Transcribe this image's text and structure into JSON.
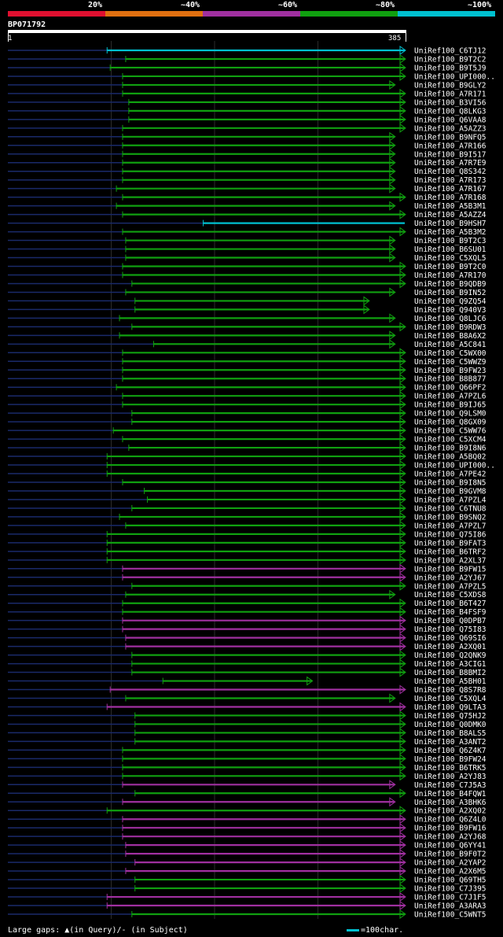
{
  "legend": [
    {
      "label": "20%",
      "color": "#e01030"
    },
    {
      "label": "~40%",
      "color": "#e07010"
    },
    {
      "label": "~60%",
      "color": "#a030a0"
    },
    {
      "label": "~80%",
      "color": "#10a010"
    },
    {
      "label": "~100%",
      "color": "#00c0d0"
    }
  ],
  "query": {
    "id": "BP071792",
    "start": "1",
    "end": "385",
    "length": 385
  },
  "footer": {
    "gaps_text": "Large gaps: ▲(in Query)/- (in Subject)",
    "scale_text": "=100char."
  },
  "hit_colors": {
    "c": "#00c0d0",
    "g": "#10a010",
    "p": "#a030a0"
  },
  "hits": [
    {
      "name": "UniRef100_C6TJ12",
      "start": 97,
      "color": "c",
      "arrow": true
    },
    {
      "name": "UniRef100_B9T2C2",
      "start": 115,
      "color": "g",
      "arrow": true
    },
    {
      "name": "UniRef100_B9T5J9",
      "start": 100,
      "color": "g",
      "arrow": true
    },
    {
      "name": "UniRef100_UPI000..",
      "start": 112,
      "color": "g",
      "arrow": true
    },
    {
      "name": "UniRef100_B9GLY2",
      "start": 112,
      "color": "g",
      "arrow": true,
      "end": 375
    },
    {
      "name": "UniRef100_A7R171",
      "start": 112,
      "color": "g",
      "arrow": true
    },
    {
      "name": "UniRef100_B3VI56",
      "start": 118,
      "color": "g",
      "arrow": true
    },
    {
      "name": "UniRef100_Q8LKG3",
      "start": 118,
      "color": "g",
      "arrow": true
    },
    {
      "name": "UniRef100_Q6VAA8",
      "start": 118,
      "color": "g",
      "arrow": true
    },
    {
      "name": "UniRef100_A5AZZ3",
      "start": 112,
      "color": "g",
      "arrow": true
    },
    {
      "name": "UniRef100_B9NFQ5",
      "start": 112,
      "color": "g",
      "arrow": true,
      "end": 375
    },
    {
      "name": "UniRef100_A7R166",
      "start": 112,
      "color": "g",
      "arrow": true,
      "end": 375
    },
    {
      "name": "UniRef100_B9I517",
      "start": 112,
      "color": "g",
      "arrow": true,
      "end": 375
    },
    {
      "name": "UniRef100_A7R7E9",
      "start": 112,
      "color": "g",
      "arrow": true,
      "end": 375
    },
    {
      "name": "UniRef100_Q8S342",
      "start": 112,
      "color": "g",
      "arrow": true,
      "end": 375
    },
    {
      "name": "UniRef100_A7R173",
      "start": 112,
      "color": "g",
      "arrow": true,
      "end": 375
    },
    {
      "name": "UniRef100_A7R167",
      "start": 106,
      "color": "g",
      "arrow": true,
      "end": 375
    },
    {
      "name": "UniRef100_A7R168",
      "start": 112,
      "color": "g",
      "arrow": true
    },
    {
      "name": "UniRef100_A5B3M1",
      "start": 106,
      "color": "g",
      "arrow": true,
      "end": 375
    },
    {
      "name": "UniRef100_A5AZZ4",
      "start": 112,
      "color": "g",
      "arrow": true
    },
    {
      "name": "UniRef100_B9HSH7",
      "start": 190,
      "color": "c",
      "arrow": false
    },
    {
      "name": "UniRef100_A5B3M2",
      "start": 112,
      "color": "g",
      "arrow": true
    },
    {
      "name": "UniRef100_B9T2C3",
      "start": 115,
      "color": "g",
      "arrow": true,
      "end": 375
    },
    {
      "name": "UniRef100_B6SU01",
      "start": 115,
      "color": "g",
      "arrow": true,
      "end": 375
    },
    {
      "name": "UniRef100_C5XQL5",
      "start": 115,
      "color": "g",
      "arrow": true,
      "end": 375
    },
    {
      "name": "UniRef100_B9T2C0",
      "start": 112,
      "color": "g",
      "arrow": true
    },
    {
      "name": "UniRef100_A7R170",
      "start": 112,
      "color": "g",
      "arrow": true
    },
    {
      "name": "UniRef100_B9QDB9",
      "start": 121,
      "color": "g",
      "arrow": true
    },
    {
      "name": "UniRef100_B9IN52",
      "start": 115,
      "color": "g",
      "arrow": true,
      "end": 375
    },
    {
      "name": "UniRef100_Q9ZQ54",
      "start": 124,
      "color": "g",
      "arrow": true,
      "end": 350
    },
    {
      "name": "UniRef100_Q940V3",
      "start": 124,
      "color": "g",
      "arrow": true,
      "end": 350
    },
    {
      "name": "UniRef100_Q8LJC6",
      "start": 109,
      "color": "g",
      "arrow": true,
      "end": 375
    },
    {
      "name": "UniRef100_B9RDW3",
      "start": 121,
      "color": "g",
      "arrow": true
    },
    {
      "name": "UniRef100_B8A6X2",
      "start": 109,
      "color": "g",
      "arrow": true,
      "end": 375
    },
    {
      "name": "UniRef100_A5C841",
      "start": 142,
      "color": "g",
      "arrow": true,
      "end": 375
    },
    {
      "name": "UniRef100_C5WX00",
      "start": 112,
      "color": "g",
      "arrow": true
    },
    {
      "name": "UniRef100_C5WWZ9",
      "start": 112,
      "color": "g",
      "arrow": true
    },
    {
      "name": "UniRef100_B9FW23",
      "start": 112,
      "color": "g",
      "arrow": true
    },
    {
      "name": "UniRef100_B8B877",
      "start": 112,
      "color": "g",
      "arrow": true
    },
    {
      "name": "UniRef100_Q66PF2",
      "start": 106,
      "color": "g",
      "arrow": true
    },
    {
      "name": "UniRef100_A7PZL6",
      "start": 112,
      "color": "g",
      "arrow": true
    },
    {
      "name": "UniRef100_B9IJ65",
      "start": 112,
      "color": "g",
      "arrow": true
    },
    {
      "name": "UniRef100_Q9LSM0",
      "start": 121,
      "color": "g",
      "arrow": true
    },
    {
      "name": "UniRef100_Q8GX09",
      "start": 121,
      "color": "g",
      "arrow": true
    },
    {
      "name": "UniRef100_C5WW76",
      "start": 103,
      "color": "g",
      "arrow": true
    },
    {
      "name": "UniRef100_C5XCM4",
      "start": 112,
      "color": "g",
      "arrow": true
    },
    {
      "name": "UniRef100_B9I8N6",
      "start": 118,
      "color": "g",
      "arrow": true
    },
    {
      "name": "UniRef100_A5BQ02",
      "start": 97,
      "color": "g",
      "arrow": true
    },
    {
      "name": "UniRef100_UPI000..",
      "start": 97,
      "color": "g",
      "arrow": true
    },
    {
      "name": "UniRef100_A7PE42",
      "start": 97,
      "color": "g",
      "arrow": true
    },
    {
      "name": "UniRef100_B9I8N5",
      "start": 112,
      "color": "g",
      "arrow": true
    },
    {
      "name": "UniRef100_B9GVM8",
      "start": 133,
      "color": "g",
      "arrow": true
    },
    {
      "name": "UniRef100_A7PZL4",
      "start": 136,
      "color": "g",
      "arrow": true
    },
    {
      "name": "UniRef100_C6TNU8",
      "start": 121,
      "color": "g",
      "arrow": true
    },
    {
      "name": "UniRef100_B9SNQ2",
      "start": 109,
      "color": "g",
      "arrow": true
    },
    {
      "name": "UniRef100_A7PZL7",
      "start": 115,
      "color": "g",
      "arrow": true
    },
    {
      "name": "UniRef100_Q75I86",
      "start": 97,
      "color": "g",
      "arrow": true
    },
    {
      "name": "UniRef100_B9FAT3",
      "start": 97,
      "color": "g",
      "arrow": true
    },
    {
      "name": "UniRef100_B6TRF2",
      "start": 97,
      "color": "g",
      "arrow": true
    },
    {
      "name": "UniRef100_A2XL37",
      "start": 97,
      "color": "g",
      "arrow": true
    },
    {
      "name": "UniRef100_B9FW15",
      "start": 112,
      "color": "p",
      "arrow": true
    },
    {
      "name": "UniRef100_A2YJ67",
      "start": 112,
      "color": "p",
      "arrow": true
    },
    {
      "name": "UniRef100_A7PZL5",
      "start": 121,
      "color": "g",
      "arrow": true
    },
    {
      "name": "UniRef100_C5XDS8",
      "start": 115,
      "color": "g",
      "arrow": true,
      "end": 375
    },
    {
      "name": "UniRef100_B6T427",
      "start": 112,
      "color": "g",
      "arrow": true
    },
    {
      "name": "UniRef100_B4FSF9",
      "start": 112,
      "color": "g",
      "arrow": true
    },
    {
      "name": "UniRef100_Q0DPB7",
      "start": 112,
      "color": "p",
      "arrow": true
    },
    {
      "name": "UniRef100_Q75I83",
      "start": 112,
      "color": "p",
      "arrow": true
    },
    {
      "name": "UniRef100_Q69SI6",
      "start": 115,
      "color": "p",
      "arrow": true
    },
    {
      "name": "UniRef100_A2XQ01",
      "start": 115,
      "color": "p",
      "arrow": true
    },
    {
      "name": "UniRef100_Q2QNK9",
      "start": 121,
      "color": "g",
      "arrow": true
    },
    {
      "name": "UniRef100_A3CIG1",
      "start": 121,
      "color": "g",
      "arrow": true
    },
    {
      "name": "UniRef100_B8BMI2",
      "start": 121,
      "color": "g",
      "arrow": true
    },
    {
      "name": "UniRef100_A5BH01",
      "start": 151,
      "color": "g",
      "arrow": true,
      "end": 295
    },
    {
      "name": "UniRef100_Q8S7R8",
      "start": 100,
      "color": "p",
      "arrow": true
    },
    {
      "name": "UniRef100_C5XQL4",
      "start": 115,
      "color": "g",
      "arrow": true,
      "end": 375
    },
    {
      "name": "UniRef100_Q9LTA3",
      "start": 97,
      "color": "p",
      "arrow": true
    },
    {
      "name": "UniRef100_Q75HJ2",
      "start": 124,
      "color": "g",
      "arrow": true
    },
    {
      "name": "UniRef100_Q0DMK0",
      "start": 124,
      "color": "g",
      "arrow": true
    },
    {
      "name": "UniRef100_B8ALS5",
      "start": 124,
      "color": "g",
      "arrow": true
    },
    {
      "name": "UniRef100_A3ANT2",
      "start": 124,
      "color": "g",
      "arrow": true
    },
    {
      "name": "UniRef100_Q6Z4K7",
      "start": 112,
      "color": "g",
      "arrow": true
    },
    {
      "name": "UniRef100_B9FW24",
      "start": 112,
      "color": "g",
      "arrow": true
    },
    {
      "name": "UniRef100_B6TRK5",
      "start": 112,
      "color": "g",
      "arrow": true
    },
    {
      "name": "UniRef100_A2YJ83",
      "start": 112,
      "color": "g",
      "arrow": true
    },
    {
      "name": "UniRef100_C7J5A3",
      "start": 112,
      "color": "p",
      "arrow": true,
      "end": 375
    },
    {
      "name": "UniRef100_B4FQW1",
      "start": 124,
      "color": "g",
      "arrow": true
    },
    {
      "name": "UniRef100_A3BHK6",
      "start": 112,
      "color": "p",
      "arrow": true,
      "end": 375
    },
    {
      "name": "UniRef100_A2XQ02",
      "start": 97,
      "color": "g",
      "arrow": true
    },
    {
      "name": "UniRef100_Q6Z4L0",
      "start": 112,
      "color": "p",
      "arrow": true
    },
    {
      "name": "UniRef100_B9FW16",
      "start": 112,
      "color": "p",
      "arrow": true
    },
    {
      "name": "UniRef100_A2YJ68",
      "start": 112,
      "color": "p",
      "arrow": true
    },
    {
      "name": "UniRef100_Q6YY41",
      "start": 115,
      "color": "p",
      "arrow": true
    },
    {
      "name": "UniRef100_B9F0T2",
      "start": 115,
      "color": "p",
      "arrow": true
    },
    {
      "name": "UniRef100_A2YAP2",
      "start": 124,
      "color": "p",
      "arrow": true
    },
    {
      "name": "UniRef100_A2X6M5",
      "start": 115,
      "color": "p",
      "arrow": true
    },
    {
      "name": "UniRef100_Q69TH5",
      "start": 124,
      "color": "g",
      "arrow": true
    },
    {
      "name": "UniRef100_C7J395",
      "start": 124,
      "color": "g",
      "arrow": true
    },
    {
      "name": "UniRef100_C7J1F5",
      "start": 97,
      "color": "p",
      "arrow": true
    },
    {
      "name": "UniRef100_A3ARA3",
      "start": 97,
      "color": "p",
      "arrow": true
    },
    {
      "name": "UniRef100_C5WNT5",
      "start": 121,
      "color": "g",
      "arrow": true
    }
  ]
}
